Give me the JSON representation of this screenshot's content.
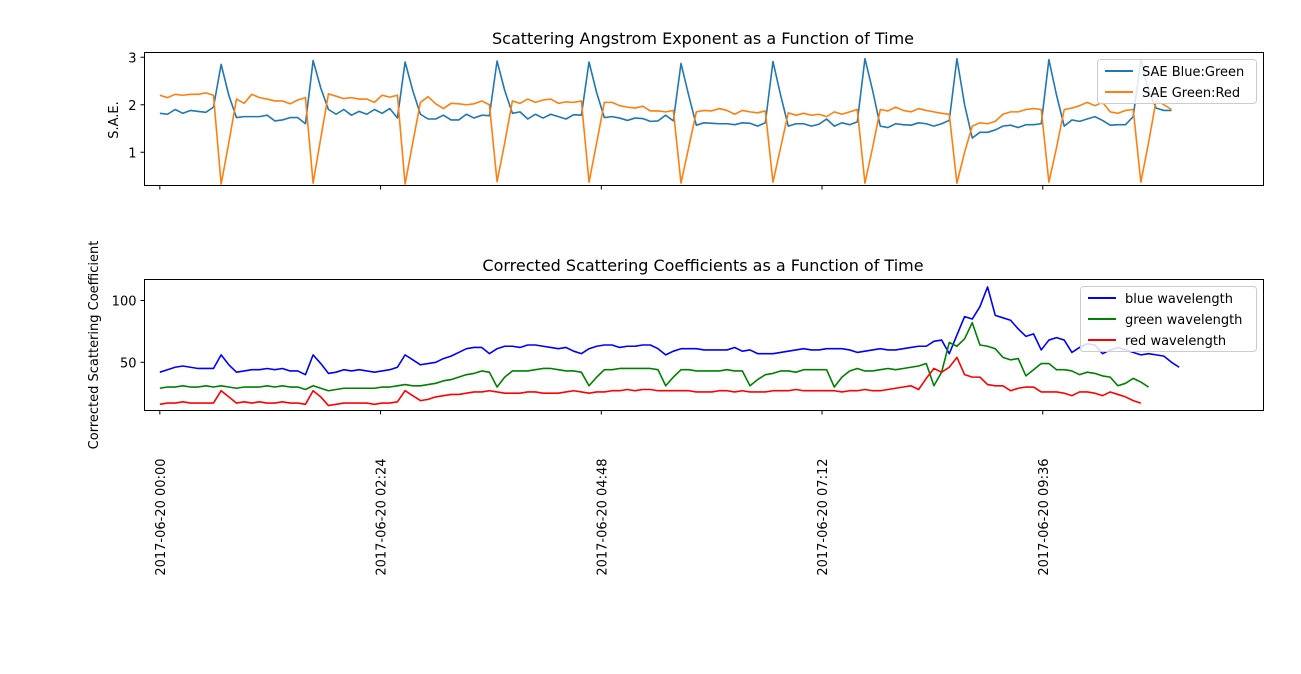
{
  "chart_data": [
    {
      "type": "line",
      "title": "Scattering Angstrom Exponent as a Function of Time",
      "xlabel": "",
      "ylabel": "S.A.E.",
      "xlim": [
        "2017-06-19 23:50",
        "2017-06-20 12:00"
      ],
      "ylim": [
        0.3,
        3.1
      ],
      "yticks": [
        1,
        2,
        3
      ],
      "sample_interval_minutes": 5,
      "legend": "top-right",
      "grid": false,
      "series": [
        {
          "name": "SAE Blue:Green",
          "color": "#1f77b4",
          "start": "2017-06-20 00:00",
          "values": [
            1.82,
            1.8,
            1.9,
            1.82,
            1.88,
            1.86,
            1.84,
            1.95,
            2.85,
            2.2,
            1.73,
            1.75,
            1.75,
            1.75,
            1.78,
            1.66,
            1.68,
            1.73,
            1.73,
            1.6,
            2.93,
            2.35,
            1.9,
            1.8,
            1.9,
            1.78,
            1.86,
            1.8,
            1.9,
            1.82,
            1.92,
            1.72,
            2.9,
            2.3,
            1.8,
            1.7,
            1.7,
            1.78,
            1.68,
            1.68,
            1.8,
            1.72,
            1.78,
            1.77,
            2.92,
            2.3,
            1.82,
            1.85,
            1.7,
            1.8,
            1.72,
            1.8,
            1.75,
            1.7,
            1.79,
            1.78,
            2.9,
            2.25,
            1.73,
            1.75,
            1.72,
            1.67,
            1.72,
            1.71,
            1.65,
            1.66,
            1.78,
            1.66,
            2.87,
            2.2,
            1.57,
            1.62,
            1.61,
            1.6,
            1.6,
            1.58,
            1.62,
            1.61,
            1.55,
            1.62,
            2.91,
            2.2,
            1.55,
            1.6,
            1.6,
            1.55,
            1.59,
            1.7,
            1.55,
            1.62,
            1.58,
            1.64,
            2.97,
            2.3,
            1.55,
            1.52,
            1.6,
            1.58,
            1.57,
            1.62,
            1.6,
            1.55,
            1.6,
            1.67,
            2.97,
            2.0,
            1.3,
            1.42,
            1.42,
            1.47,
            1.55,
            1.57,
            1.52,
            1.58,
            1.58,
            1.6,
            2.95,
            2.2,
            1.55,
            1.68,
            1.65,
            1.7,
            1.75,
            1.67,
            1.57,
            1.58,
            1.58,
            1.75,
            2.95,
            2.3,
            1.93,
            1.88,
            1.88
          ]
        },
        {
          "name": "SAE Green:Red",
          "color": "#ff7f0e",
          "start": "2017-06-20 00:00",
          "values": [
            2.2,
            2.15,
            2.22,
            2.2,
            2.22,
            2.22,
            2.25,
            2.2,
            0.33,
            1.2,
            2.12,
            2.03,
            2.22,
            2.15,
            2.12,
            2.08,
            2.08,
            2.02,
            2.1,
            2.15,
            0.35,
            1.3,
            2.23,
            2.18,
            2.13,
            2.15,
            2.12,
            2.12,
            2.05,
            2.2,
            2.16,
            2.2,
            0.33,
            1.2,
            2.05,
            2.17,
            2.02,
            1.92,
            2.03,
            2.02,
            2.0,
            2.02,
            2.08,
            2.0,
            0.38,
            1.2,
            2.08,
            2.03,
            2.12,
            2.05,
            2.1,
            2.12,
            2.03,
            2.06,
            2.05,
            2.08,
            0.37,
            1.2,
            2.05,
            2.05,
            1.98,
            1.95,
            1.93,
            1.97,
            1.87,
            1.87,
            1.85,
            1.88,
            0.35,
            1.1,
            1.85,
            1.88,
            1.87,
            1.92,
            1.88,
            1.8,
            1.88,
            1.85,
            1.83,
            1.87,
            0.37,
            1.1,
            1.83,
            1.78,
            1.82,
            1.78,
            1.8,
            1.75,
            1.85,
            1.8,
            1.85,
            1.9,
            0.35,
            1.1,
            1.9,
            1.87,
            1.95,
            1.88,
            1.85,
            1.92,
            1.88,
            1.85,
            1.82,
            1.8,
            0.35,
            1.0,
            1.55,
            1.62,
            1.6,
            1.65,
            1.8,
            1.85,
            1.85,
            1.9,
            1.92,
            1.9,
            0.37,
            1.1,
            1.9,
            1.93,
            1.98,
            2.05,
            1.98,
            2.05,
            1.85,
            1.82,
            1.88,
            1.9,
            0.37,
            1.2,
            2.1,
            2.0,
            1.9
          ]
        }
      ]
    },
    {
      "type": "line",
      "title": "Corrected Scattering Coefficients as a Function of Time",
      "xlabel": "",
      "ylabel": "Corrected Scattering Coefficient",
      "xlim": [
        "2017-06-19 23:50",
        "2017-06-20 12:00"
      ],
      "ylim": [
        11,
        117
      ],
      "yticks": [
        50,
        100
      ],
      "xticks": [
        "2017-06-20 00:00",
        "2017-06-20 02:24",
        "2017-06-20 04:48",
        "2017-06-20 07:12",
        "2017-06-20 09:36"
      ],
      "sample_interval_minutes": 5,
      "legend": "top-right",
      "grid": false,
      "series": [
        {
          "name": "blue wavelength",
          "color": "#0000ff",
          "start": "2017-06-20 00:00",
          "values": [
            42,
            44,
            46,
            47,
            46,
            45,
            45,
            45,
            56,
            48,
            42,
            43,
            44,
            44,
            45,
            44,
            45,
            43,
            43,
            40,
            56,
            49,
            41,
            42,
            44,
            43,
            44,
            43,
            42,
            43,
            44,
            46,
            56,
            52,
            48,
            49,
            50,
            53,
            55,
            58,
            61,
            62,
            62,
            57,
            61,
            63,
            63,
            62,
            64,
            64,
            63,
            62,
            61,
            62,
            59,
            57,
            61,
            63,
            64,
            64,
            62,
            63,
            63,
            64,
            64,
            61,
            56,
            59,
            61,
            61,
            61,
            60,
            60,
            60,
            60,
            62,
            59,
            60,
            57,
            57,
            57,
            58,
            59,
            60,
            61,
            60,
            60,
            61,
            61,
            61,
            60,
            58,
            59,
            60,
            61,
            60,
            60,
            61,
            62,
            63,
            63,
            67,
            68,
            57,
            72,
            87,
            85,
            95,
            111,
            88,
            86,
            84,
            77,
            71,
            73,
            60,
            68,
            70,
            68,
            58,
            62,
            65,
            64,
            57,
            60,
            62,
            60,
            58,
            56,
            57,
            56,
            55,
            50,
            46
          ]
        },
        {
          "name": "green wavelength",
          "color": "#008000",
          "start": "2017-06-20 00:00",
          "values": [
            29,
            30,
            30,
            31,
            30,
            30,
            31,
            30,
            31,
            30,
            29,
            30,
            30,
            30,
            31,
            30,
            31,
            30,
            30,
            28,
            31,
            29,
            27,
            28,
            29,
            29,
            29,
            29,
            29,
            30,
            30,
            31,
            32,
            31,
            31,
            32,
            33,
            35,
            36,
            38,
            40,
            41,
            43,
            42,
            30,
            38,
            43,
            43,
            43,
            44,
            45,
            45,
            44,
            43,
            43,
            42,
            31,
            38,
            44,
            44,
            45,
            45,
            45,
            45,
            45,
            44,
            31,
            38,
            44,
            44,
            43,
            43,
            43,
            43,
            44,
            43,
            43,
            31,
            36,
            40,
            41,
            43,
            43,
            42,
            44,
            44,
            44,
            44,
            30,
            38,
            43,
            45,
            43,
            43,
            44,
            45,
            44,
            45,
            46,
            47,
            49,
            31,
            42,
            66,
            63,
            69,
            82,
            64,
            63,
            61,
            54,
            52,
            53,
            39,
            44,
            49,
            49,
            44,
            44,
            43,
            40,
            42,
            41,
            39,
            38,
            31,
            33,
            37,
            34,
            30
          ]
        },
        {
          "name": "red wavelength",
          "color": "#ff0000",
          "start": "2017-06-20 00:00",
          "values": [
            16,
            17,
            17,
            18,
            17,
            17,
            17,
            17,
            27,
            22,
            17,
            18,
            17,
            18,
            17,
            17,
            18,
            17,
            17,
            16,
            27,
            22,
            15,
            16,
            17,
            17,
            17,
            17,
            16,
            17,
            17,
            18,
            27,
            23,
            19,
            20,
            22,
            23,
            24,
            24,
            25,
            26,
            26,
            27,
            26,
            25,
            25,
            25,
            26,
            26,
            25,
            25,
            25,
            26,
            27,
            26,
            25,
            26,
            26,
            27,
            27,
            28,
            27,
            28,
            28,
            27,
            27,
            27,
            27,
            27,
            26,
            26,
            26,
            27,
            27,
            26,
            27,
            26,
            26,
            26,
            27,
            27,
            27,
            28,
            27,
            27,
            27,
            27,
            27,
            26,
            27,
            27,
            28,
            27,
            27,
            28,
            29,
            30,
            31,
            28,
            37,
            45,
            42,
            46,
            54,
            40,
            38,
            38,
            32,
            31,
            31,
            27,
            29,
            30,
            30,
            26,
            26,
            26,
            25,
            23,
            26,
            26,
            25,
            23,
            26,
            24,
            22,
            19,
            17
          ]
        }
      ]
    }
  ]
}
